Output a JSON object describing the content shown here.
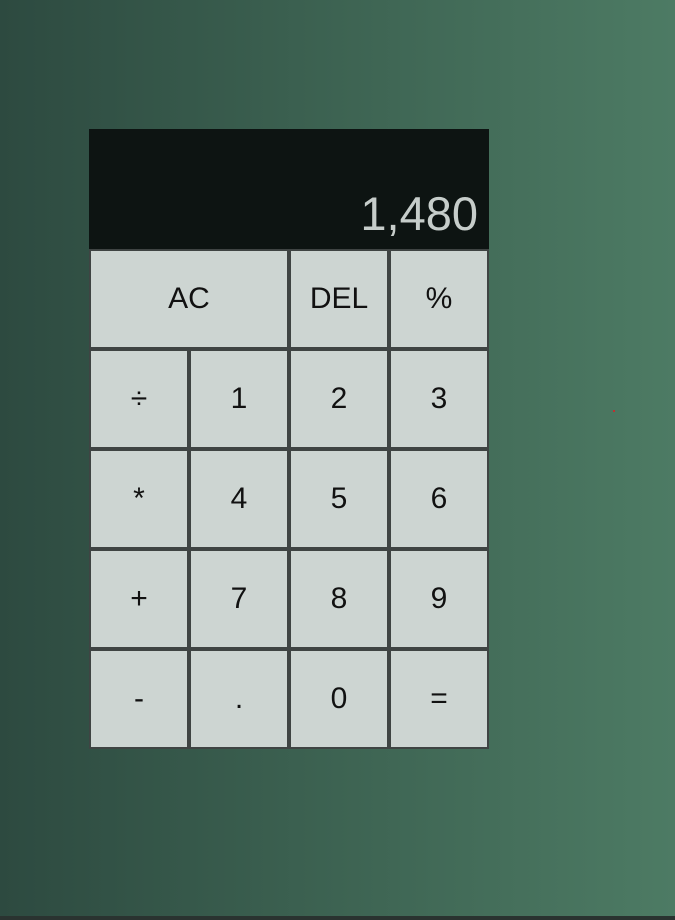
{
  "display": {
    "value": "1,480"
  },
  "keys": {
    "ac": "AC",
    "del": "DEL",
    "percent": "%",
    "divide": "÷",
    "one": "1",
    "two": "2",
    "three": "3",
    "multiply": "*",
    "four": "4",
    "five": "5",
    "six": "6",
    "plus": "+",
    "seven": "7",
    "eight": "8",
    "nine": "9",
    "minus": "-",
    "decimal": ".",
    "zero": "0",
    "equals": "="
  },
  "colors": {
    "display_bg": "#0d1412",
    "display_text": "#c6cdca",
    "key_bg": "#cdd5d2",
    "key_border": "#3f4443",
    "background_from": "#2d4a40",
    "background_to": "#4d7b64"
  }
}
